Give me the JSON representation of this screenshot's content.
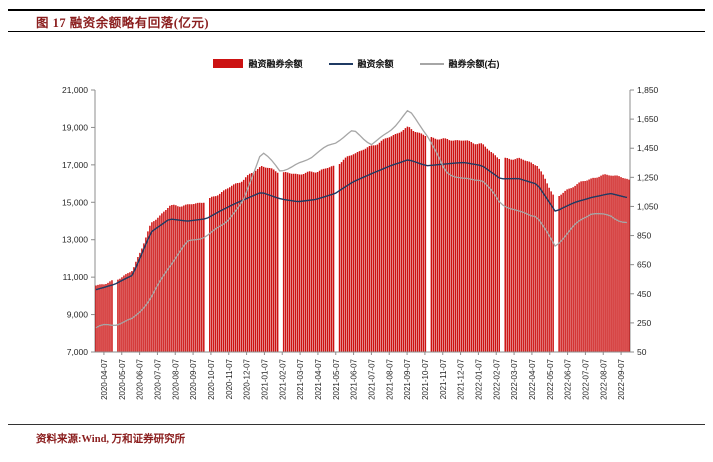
{
  "theme": {
    "accent": "#8B1E1E",
    "axis": "#8C8C8C",
    "text": "#262626",
    "rule": "#000000"
  },
  "header": {
    "title": "图 17  融资余额略有回落(亿元)"
  },
  "legend": {
    "items": [
      {
        "label": "融资融券余额"
      },
      {
        "label": "融资余额"
      },
      {
        "label": "融券余额(右)"
      }
    ]
  },
  "footer": {
    "source": "资料来源:Wind, 万和证券研究所"
  },
  "chart_data": {
    "type": "combo",
    "title": "融资余额略有回落(亿元)",
    "grid": false,
    "legend_position": "top",
    "categories": [
      "2020-04-07",
      "2020-05-07",
      "2020-06-07",
      "2020-07-07",
      "2020-08-07",
      "2020-09-07",
      "2020-10-07",
      "2020-11-07",
      "2020-12-07",
      "2021-01-07",
      "2021-02-07",
      "2021-03-07",
      "2021-04-07",
      "2021-05-07",
      "2021-06-07",
      "2021-07-07",
      "2021-08-07",
      "2021-09-07",
      "2021-10-07",
      "2021-11-07",
      "2021-12-07",
      "2022-01-07",
      "2022-02-07",
      "2022-03-07",
      "2022-04-07",
      "2022-05-07",
      "2022-06-07",
      "2022-07-07",
      "2022-08-07",
      "2022-09-07"
    ],
    "series": [
      {
        "name": "融资融券余额",
        "type": "bar",
        "axis": "left",
        "color": "#CC1212",
        "values": [
          10550,
          10800,
          11350,
          13850,
          14800,
          14850,
          15050,
          15650,
          16200,
          16950,
          16600,
          16500,
          16650,
          16950,
          17600,
          18000,
          18500,
          19000,
          18500,
          18350,
          18300,
          18100,
          17300,
          17350,
          17000,
          15200,
          15900,
          16300,
          16500,
          16200
        ]
      },
      {
        "name": "融资余额",
        "type": "line",
        "axis": "left",
        "color": "#1F3A63",
        "values": [
          10300,
          10550,
          11050,
          13400,
          14150,
          14050,
          14150,
          14650,
          15100,
          15550,
          15250,
          15100,
          15200,
          15450,
          16050,
          16500,
          16950,
          17300,
          16950,
          17000,
          17050,
          16900,
          16250,
          16300,
          16000,
          14500,
          14950,
          15250,
          15500,
          15300
        ]
      },
      {
        "name": "融券余额(右)",
        "type": "line",
        "axis": "right",
        "color": "#A6A6A6",
        "values": [
          200,
          220,
          280,
          430,
          620,
          780,
          850,
          960,
          1080,
          1420,
          1310,
          1370,
          1430,
          1470,
          1560,
          1490,
          1570,
          1680,
          1520,
          1300,
          1250,
          1230,
          1060,
          1030,
          1020,
          780,
          900,
          1010,
          1000,
          930
        ]
      }
    ],
    "left_axis": {
      "min": 7000,
      "max": 21000,
      "tick_values": [
        7000,
        9000,
        11000,
        13000,
        15000,
        17000,
        19000,
        21000
      ],
      "tick_labels": [
        "7,000",
        "9,000",
        "11,000",
        "13,000",
        "15,000",
        "17,000",
        "19,000",
        "21,000"
      ]
    },
    "right_axis": {
      "min": 50,
      "max": 1850,
      "tick_values": [
        50,
        250,
        450,
        650,
        850,
        1050,
        1250,
        1450,
        1650,
        1850
      ],
      "tick_labels": [
        "50",
        "250",
        "450",
        "650",
        "850",
        "1,050",
        "1,250",
        "1,450",
        "1,650",
        "1,850"
      ]
    }
  }
}
